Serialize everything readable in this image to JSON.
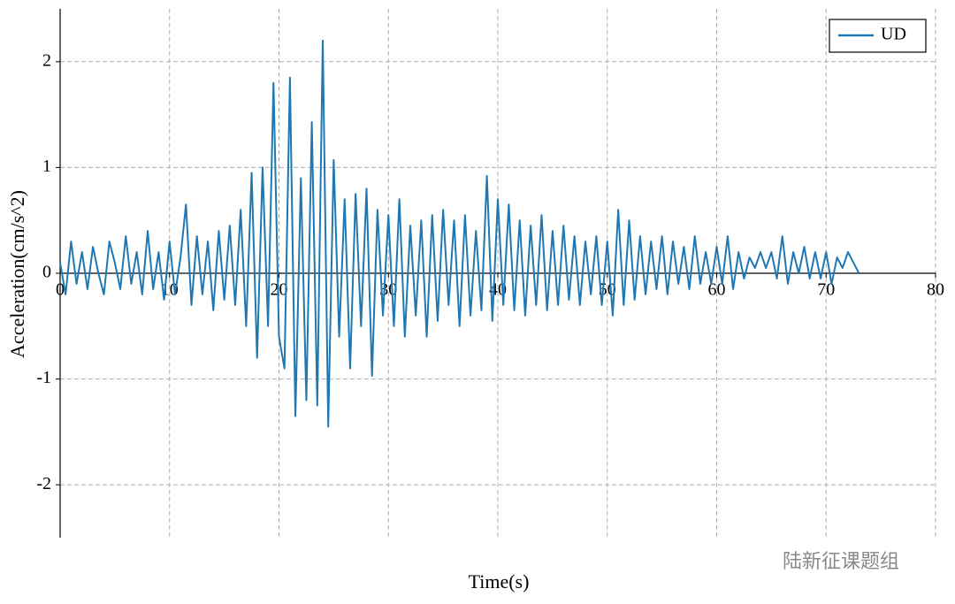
{
  "chart_data": {
    "type": "line",
    "xlabel": "Time(s)",
    "ylabel": "Acceleration(cm/s^2)",
    "watermark": "陆新征课题组",
    "xlim": [
      0,
      80
    ],
    "xticks": [
      0,
      10,
      20,
      30,
      40,
      50,
      60,
      70,
      80
    ],
    "ylim": [
      -2.5,
      2.5
    ],
    "yticks": [
      -2,
      -1,
      0,
      1,
      2
    ],
    "grid": true,
    "legend": "upper right",
    "x": [
      0,
      0.5,
      1,
      1.5,
      2,
      2.5,
      3,
      3.5,
      4,
      4.5,
      5,
      5.5,
      6,
      6.5,
      7,
      7.5,
      8,
      8.5,
      9,
      9.5,
      10,
      10.5,
      11,
      11.5,
      12,
      12.5,
      13,
      13.5,
      14,
      14.5,
      15,
      15.5,
      16,
      16.5,
      17,
      17.5,
      18,
      18.5,
      19,
      19.5,
      20,
      20.5,
      21,
      21.5,
      22,
      22.5,
      23,
      23.5,
      24,
      24.5,
      25,
      25.5,
      26,
      26.5,
      27,
      27.5,
      28,
      28.5,
      29,
      29.5,
      30,
      30.5,
      31,
      31.5,
      32,
      32.5,
      33,
      33.5,
      34,
      34.5,
      35,
      35.5,
      36,
      36.5,
      37,
      37.5,
      38,
      38.5,
      39,
      39.5,
      40,
      40.5,
      41,
      41.5,
      42,
      42.5,
      43,
      43.5,
      44,
      44.5,
      45,
      45.5,
      46,
      46.5,
      47,
      47.5,
      48,
      48.5,
      49,
      49.5,
      50,
      50.5,
      51,
      51.5,
      52,
      52.5,
      53,
      53.5,
      54,
      54.5,
      55,
      55.5,
      56,
      56.5,
      57,
      57.5,
      58,
      58.5,
      59,
      59.5,
      60,
      60.5,
      61,
      61.5,
      62,
      62.5,
      63,
      63.5,
      64,
      64.5,
      65,
      65.5,
      66,
      66.5,
      67,
      67.5,
      68,
      68.5,
      69,
      69.5,
      70,
      70.5,
      71,
      71.5,
      72,
      72.5,
      73
    ],
    "series": [
      {
        "name": "UD",
        "color": "#1f77b4",
        "values": [
          0.1,
          -0.2,
          0.3,
          -0.1,
          0.2,
          -0.15,
          0.25,
          0,
          -0.2,
          0.3,
          0.1,
          -0.15,
          0.35,
          -0.1,
          0.2,
          -0.2,
          0.4,
          -0.15,
          0.2,
          -0.25,
          0.3,
          -0.2,
          0.15,
          0.65,
          -0.3,
          0.35,
          -0.2,
          0.3,
          -0.35,
          0.4,
          -0.25,
          0.45,
          -0.3,
          0.6,
          -0.5,
          0.95,
          -0.8,
          1.0,
          -0.5,
          1.8,
          -0.6,
          -0.9,
          1.85,
          -1.35,
          0.9,
          -1.2,
          1.43,
          -1.25,
          2.2,
          -1.45,
          1.07,
          -0.6,
          0.7,
          -0.9,
          0.75,
          -0.5,
          0.8,
          -0.97,
          0.6,
          -0.4,
          0.55,
          -0.5,
          0.7,
          -0.6,
          0.45,
          -0.4,
          0.5,
          -0.6,
          0.55,
          -0.45,
          0.6,
          -0.3,
          0.5,
          -0.5,
          0.55,
          -0.4,
          0.4,
          -0.35,
          0.92,
          -0.45,
          0.7,
          -0.3,
          0.65,
          -0.35,
          0.5,
          -0.4,
          0.45,
          -0.3,
          0.55,
          -0.35,
          0.4,
          -0.3,
          0.45,
          -0.25,
          0.35,
          -0.3,
          0.3,
          -0.2,
          0.35,
          -0.3,
          0.3,
          -0.4,
          0.6,
          -0.3,
          0.5,
          -0.25,
          0.35,
          -0.2,
          0.3,
          -0.15,
          0.35,
          -0.2,
          0.3,
          -0.1,
          0.25,
          -0.15,
          0.35,
          -0.1,
          0.2,
          -0.1,
          0.25,
          -0.1,
          0.35,
          -0.15,
          0.2,
          -0.05,
          0.15,
          0.05,
          0.2,
          0.05,
          0.2,
          -0.05,
          0.35,
          -0.1,
          0.2,
          0,
          0.25,
          -0.05,
          0.2,
          -0.05,
          0.2,
          -0.1,
          0.15,
          0.05,
          0.2,
          0.1,
          0
        ]
      }
    ]
  }
}
